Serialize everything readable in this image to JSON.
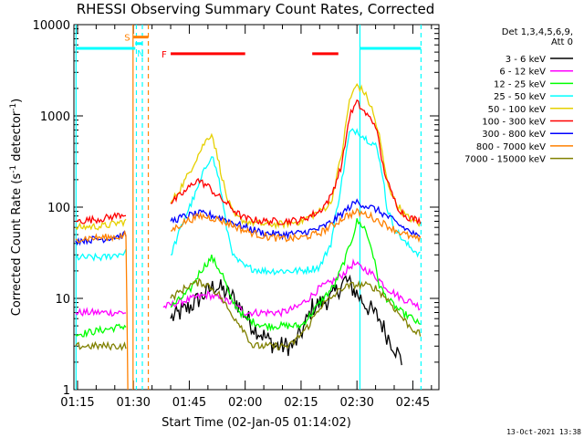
{
  "chart_data": {
    "type": "line",
    "title": "RHESSI Observing Summary Count Rates, Corrected",
    "xlabel": "Start Time (02-Jan-05 01:14:02)",
    "ylabel": "Corrected Count Rate (s",
    "ylabel_sup": "-1",
    "ylabel_tail": " detector",
    "ylabel_sup2": "-1",
    "ylabel_end": ")",
    "xlim_minutes": [
      74.03,
      172.0
    ],
    "ylim": [
      1,
      10000
    ],
    "yscale": "log",
    "x_ticks": [
      {
        "label": "01:15",
        "minutes": 75
      },
      {
        "label": "01:30",
        "minutes": 90
      },
      {
        "label": "01:45",
        "minutes": 105
      },
      {
        "label": "02:00",
        "minutes": 120
      },
      {
        "label": "02:15",
        "minutes": 135
      },
      {
        "label": "02:30",
        "minutes": 150
      },
      {
        "label": "02:45",
        "minutes": 165
      }
    ],
    "y_ticks": [
      {
        "label": "1",
        "value": 1
      },
      {
        "label": "10",
        "value": 10
      },
      {
        "label": "100",
        "value": 100
      },
      {
        "label": "1000",
        "value": 1000
      },
      {
        "label": "10000",
        "value": 10000
      }
    ],
    "legend_header": [
      "Det 1,3,4,5,6,9,",
      "Att 0"
    ],
    "legend_placement": "right",
    "series": [
      {
        "name": "3 - 6 keV",
        "color": "#000000",
        "x": [
          74.5,
          88,
          88.5,
          92.5,
          93,
          96,
          100,
          105,
          110,
          112,
          117,
          122,
          128,
          133,
          136,
          138,
          143,
          147,
          151,
          153,
          156,
          158,
          160,
          162
        ],
        "y": [
          null,
          null,
          null,
          null,
          null,
          null,
          6,
          8,
          12,
          14,
          10,
          5,
          3,
          3,
          5,
          8,
          10,
          16,
          10,
          8,
          6,
          4,
          3,
          2
        ]
      },
      {
        "name": "6 - 12 keV",
        "color": "#ff00ff",
        "x": [
          74.5,
          82,
          88,
          88.5,
          92.5,
          93,
          96,
          98,
          102,
          106,
          110,
          113,
          116,
          120,
          125,
          130,
          134,
          137,
          140,
          143,
          146,
          149,
          151,
          153,
          156,
          158,
          162,
          165,
          167
        ],
        "y": [
          7,
          7,
          7,
          null,
          null,
          null,
          null,
          8,
          9,
          10,
          11,
          10,
          9,
          7,
          7,
          7,
          8,
          10,
          13,
          15,
          18,
          24,
          22,
          20,
          16,
          13,
          10,
          9,
          8
        ]
      },
      {
        "name": "12 - 25 keV",
        "color": "#00ff00",
        "x": [
          74.5,
          88,
          88.5,
          92.5,
          93,
          96,
          100,
          105,
          108,
          111,
          114,
          116,
          120,
          125,
          130,
          135,
          138,
          141,
          144,
          147,
          149,
          150,
          152,
          154,
          156,
          158,
          162,
          165,
          167
        ],
        "y": [
          4,
          5,
          null,
          null,
          null,
          null,
          8,
          12,
          20,
          28,
          18,
          10,
          6,
          5,
          5,
          5,
          7,
          10,
          14,
          28,
          50,
          70,
          60,
          35,
          14,
          10,
          7,
          6,
          5
        ]
      },
      {
        "name": "25 - 50 keV",
        "color": "#00ffff",
        "x": [
          74.5,
          82,
          88,
          88.5,
          92.5,
          93,
          96,
          100,
          104,
          107,
          109,
          111,
          113,
          115,
          117,
          120,
          125,
          130,
          135,
          140,
          143,
          146,
          148,
          150,
          152,
          155,
          157,
          158,
          160,
          163,
          167
        ],
        "y": [
          28,
          28,
          32,
          null,
          null,
          null,
          null,
          30,
          80,
          150,
          250,
          380,
          200,
          60,
          28,
          22,
          20,
          20,
          20,
          22,
          40,
          200,
          650,
          700,
          580,
          480,
          220,
          100,
          60,
          40,
          30
        ]
      },
      {
        "name": "50 - 100 keV",
        "color": "#e6d000",
        "x": [
          74.5,
          82,
          88,
          88.5,
          92.5,
          93,
          96,
          100,
          104,
          107,
          109,
          111,
          113,
          115,
          117,
          120,
          125,
          130,
          135,
          140,
          143,
          146,
          148,
          150,
          152,
          154,
          156,
          158,
          160,
          163,
          167
        ],
        "y": [
          60,
          62,
          70,
          null,
          null,
          null,
          null,
          110,
          200,
          350,
          500,
          650,
          300,
          130,
          80,
          70,
          65,
          65,
          70,
          90,
          110,
          400,
          1500,
          2200,
          1800,
          1200,
          600,
          200,
          120,
          80,
          65
        ]
      },
      {
        "name": "100 - 300 keV",
        "color": "#ff0000",
        "x": [
          74.5,
          82,
          88,
          88.5,
          92.5,
          93,
          96,
          100,
          104,
          107,
          110,
          112,
          115,
          118,
          120,
          125,
          130,
          135,
          140,
          143,
          146,
          148,
          150,
          152,
          155,
          157,
          159,
          161,
          163,
          167
        ],
        "y": [
          70,
          75,
          85,
          null,
          null,
          null,
          null,
          110,
          150,
          200,
          170,
          140,
          110,
          85,
          75,
          70,
          70,
          72,
          90,
          130,
          300,
          1000,
          1400,
          1100,
          800,
          280,
          150,
          100,
          80,
          70
        ]
      },
      {
        "name": "300 - 800 keV",
        "color": "#0000ff",
        "x": [
          74.5,
          82,
          88,
          88.5,
          92.5,
          93,
          96,
          100,
          104,
          108,
          112,
          116,
          120,
          125,
          130,
          135,
          140,
          143,
          146,
          148,
          150,
          152,
          155,
          158,
          161,
          164,
          167
        ],
        "y": [
          43,
          45,
          50,
          null,
          null,
          null,
          null,
          70,
          80,
          85,
          80,
          70,
          60,
          52,
          50,
          52,
          58,
          68,
          85,
          100,
          115,
          105,
          95,
          80,
          65,
          55,
          45
        ]
      },
      {
        "name": "800 - 7000 keV",
        "color": "#ff8000",
        "x": [
          74.5,
          80,
          84,
          87,
          88,
          88.5,
          88.6,
          92.5,
          93,
          96,
          100,
          104,
          108,
          112,
          116,
          120,
          125,
          130,
          135,
          140,
          144,
          147,
          150,
          153,
          156,
          159,
          162,
          165,
          167
        ],
        "y": [
          45,
          46,
          47,
          48,
          50,
          1,
          null,
          null,
          null,
          null,
          55,
          70,
          80,
          75,
          65,
          55,
          48,
          45,
          46,
          52,
          65,
          80,
          88,
          82,
          70,
          60,
          52,
          46,
          44
        ]
      },
      {
        "name": "7000 - 15000 keV",
        "color": "#808000",
        "x": [
          74.5,
          82,
          88,
          88.5,
          92.5,
          93,
          96,
          100,
          105,
          108,
          110,
          113,
          116,
          119,
          122,
          127,
          132,
          137,
          140,
          143,
          146,
          149,
          152,
          155,
          158,
          161,
          164,
          167
        ],
        "y": [
          3,
          3,
          3,
          null,
          null,
          null,
          null,
          10,
          14,
          15,
          14,
          11,
          7,
          5,
          3,
          3,
          3,
          5,
          8,
          10,
          13,
          14,
          14,
          13,
          10,
          7,
          5,
          4
        ]
      }
    ],
    "annotations": {
      "flags": [
        {
          "label": "S",
          "color": "#ff8000",
          "x_start": 90,
          "x_end": 94,
          "value": 7300
        },
        {
          "label": "N",
          "color": "#00ffff",
          "x_start": 90.5,
          "x_end": 92.5,
          "value": 6200
        },
        {
          "label": "F",
          "color": "#ff0000",
          "x_start": 100,
          "x_end": 120,
          "value": 4800
        },
        {
          "label": "",
          "color": "#ff0000",
          "x_start": 138,
          "x_end": 145,
          "value": 4800
        }
      ],
      "cyan_segments": [
        {
          "x_start": 74.5,
          "x_end": 90.5,
          "value": 5500
        },
        {
          "x_start": 150.8,
          "x_end": 167.2,
          "value": 5500
        }
      ],
      "vlines": [
        {
          "x": 74.6,
          "color": "#00ffff",
          "style": "solid"
        },
        {
          "x": 90.8,
          "color": "#00ffff",
          "style": "dashed"
        },
        {
          "x": 92.4,
          "color": "#00ffff",
          "style": "dashed"
        },
        {
          "x": 89.9,
          "color": "#ff8000",
          "style": "solid"
        },
        {
          "x": 94.0,
          "color": "#ff8000",
          "style": "dashed"
        },
        {
          "x": 150.8,
          "color": "#00ffff",
          "style": "solid"
        },
        {
          "x": 167.2,
          "color": "#00ffff",
          "style": "dashed"
        }
      ]
    }
  },
  "footer_timestamp": "13-Oct-2021 13:38"
}
